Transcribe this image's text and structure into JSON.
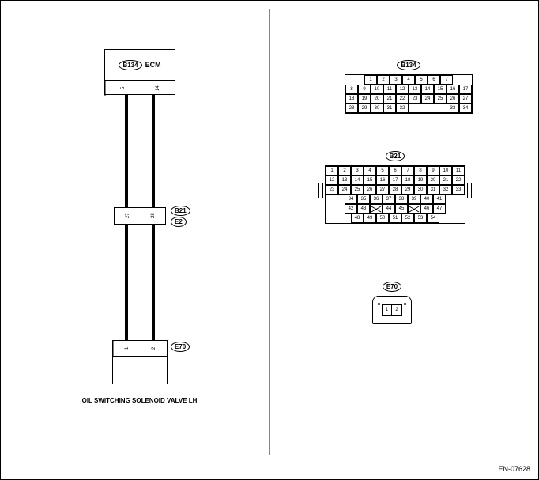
{
  "wiring": {
    "ecm": {
      "connector": "B134",
      "label": "ECM",
      "pins": [
        "5",
        "14"
      ]
    },
    "mid_connector": {
      "top_conn": "B21",
      "bottom_conn": "E2",
      "pins": [
        "27",
        "28"
      ]
    },
    "solenoid": {
      "connector": "E70",
      "pins": [
        "1",
        "2"
      ],
      "label": "OIL SWITCHING SOLENOID VALVE LH"
    }
  },
  "pinouts": {
    "b134": {
      "label": "B134",
      "rows": [
        [
          "1",
          "2",
          "3",
          "4",
          "5",
          "6",
          "7"
        ],
        [
          "8",
          "9",
          "10",
          "11",
          "12",
          "13",
          "14",
          "15",
          "16",
          "17"
        ],
        [
          "18",
          "19",
          "20",
          "21",
          "22",
          "23",
          "24",
          "25",
          "26",
          "27"
        ],
        [
          "28",
          "29",
          "30",
          "31",
          "32",
          "",
          "",
          "",
          "33",
          "34"
        ]
      ]
    },
    "b21": {
      "label": "B21",
      "rows": [
        [
          "1",
          "2",
          "3",
          "4",
          "5",
          "6",
          "7",
          "8",
          "9",
          "10",
          "11"
        ],
        [
          "12",
          "13",
          "14",
          "15",
          "16",
          "17",
          "18",
          "19",
          "20",
          "21",
          "22"
        ],
        [
          "23",
          "24",
          "25",
          "26",
          "27",
          "28",
          "29",
          "30",
          "31",
          "32",
          "33"
        ],
        [
          "34",
          "35",
          "36",
          "37",
          "38",
          "39",
          "40",
          "41"
        ],
        [
          "42",
          "43",
          "X",
          "44",
          "45",
          "X",
          "46",
          "47"
        ],
        [
          "48",
          "49",
          "50",
          "51",
          "52",
          "53",
          "54"
        ]
      ]
    },
    "e70": {
      "label": "E70",
      "pins": [
        "1",
        "2"
      ]
    }
  },
  "doc_code": "EN-07628",
  "colors": {
    "line": "#000000",
    "bg": "#ffffff"
  }
}
